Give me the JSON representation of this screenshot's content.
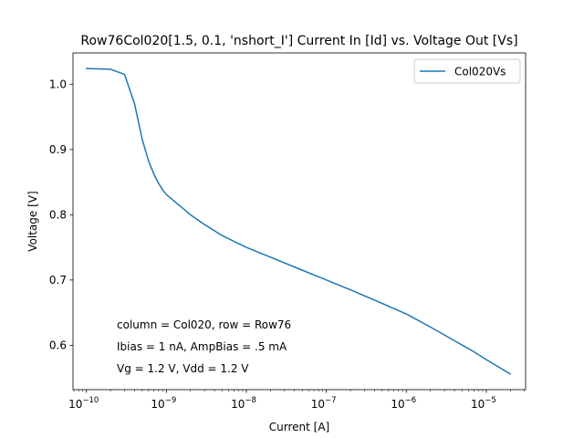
{
  "chart_data": {
    "type": "line",
    "title": "Row76Col020[1.5, 0.1, 'nshort_I'] Current In [Id] vs. Voltage Out [Vs]",
    "xlabel": "Current [A]",
    "ylabel": "Voltage [V]",
    "xscale": "log",
    "xlim": [
      6.8e-11,
      3.1e-05
    ],
    "ylim": [
      0.532,
      1.048
    ],
    "grid": false,
    "legend_position": "top-right",
    "x_ticks": [
      {
        "value": 1e-10,
        "base": "10",
        "exp": "−10"
      },
      {
        "value": 1e-09,
        "base": "10",
        "exp": "−9"
      },
      {
        "value": 1e-08,
        "base": "10",
        "exp": "−8"
      },
      {
        "value": 1e-07,
        "base": "10",
        "exp": "−7"
      },
      {
        "value": 1e-06,
        "base": "10",
        "exp": "−6"
      },
      {
        "value": 1e-05,
        "base": "10",
        "exp": "−5"
      }
    ],
    "y_ticks": [
      {
        "value": 0.6,
        "label": "0.6"
      },
      {
        "value": 0.7,
        "label": "0.7"
      },
      {
        "value": 0.8,
        "label": "0.8"
      },
      {
        "value": 0.9,
        "label": "0.9"
      },
      {
        "value": 1.0,
        "label": "1.0"
      }
    ],
    "annotations": [
      "column = Col020, row = Row76",
      "Ibias = 1 nA, AmpBias = .5 mA",
      "Vg = 1.2 V, Vdd = 1.2 V"
    ],
    "series": [
      {
        "name": "Col020Vs",
        "color": "#1f77b4",
        "x": [
          1e-10,
          2e-10,
          3e-10,
          4e-10,
          5e-10,
          6e-10,
          7e-10,
          8e-10,
          9e-10,
          1e-09,
          2e-09,
          3e-09,
          5e-09,
          1e-08,
          2e-08,
          5e-08,
          1e-07,
          2e-07,
          5e-07,
          1e-06,
          2e-06,
          4e-06,
          7e-06,
          1e-05,
          2e-05
        ],
        "y": [
          1.024,
          1.023,
          1.015,
          0.97,
          0.915,
          0.882,
          0.862,
          0.848,
          0.838,
          0.831,
          0.8,
          0.785,
          0.768,
          0.75,
          0.735,
          0.715,
          0.7,
          0.685,
          0.664,
          0.648,
          0.628,
          0.607,
          0.59,
          0.578,
          0.556
        ]
      }
    ]
  }
}
